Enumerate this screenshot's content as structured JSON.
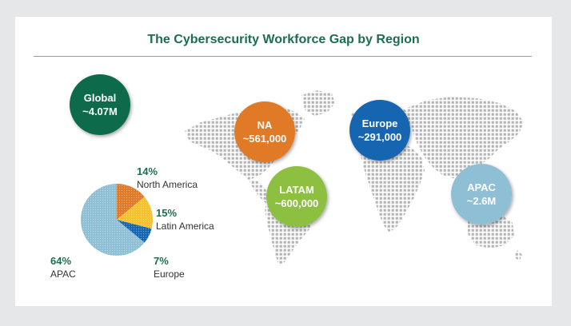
{
  "title": "The Cybersecurity Workforce Gap by Region",
  "bubbles": [
    {
      "region": "Global",
      "value": "~4.07M",
      "color": "#0e6b4c"
    },
    {
      "region": "NA",
      "value": "~561,000",
      "color": "#e07a28"
    },
    {
      "region": "Europe",
      "value": "~291,000",
      "color": "#1565b0"
    },
    {
      "region": "LATAM",
      "value": "~600,000",
      "color": "#8dbf3f"
    },
    {
      "region": "APAC",
      "value": "~2.6M",
      "color": "#8fbfd4"
    }
  ],
  "chart_data": {
    "type": "pie",
    "title": "The Cybersecurity Workforce Gap by Region",
    "slices": [
      {
        "label": "North America",
        "value": 14,
        "display": "14%",
        "color": "#e07a28"
      },
      {
        "label": "Latin America",
        "value": 15,
        "display": "15%",
        "color": "#f6c12b"
      },
      {
        "label": "Europe",
        "value": 7,
        "display": "7%",
        "color": "#1565b0"
      },
      {
        "label": "APAC",
        "value": 64,
        "display": "64%",
        "color": "#8fbfd4"
      }
    ],
    "label_color": "#1c6e4e"
  }
}
